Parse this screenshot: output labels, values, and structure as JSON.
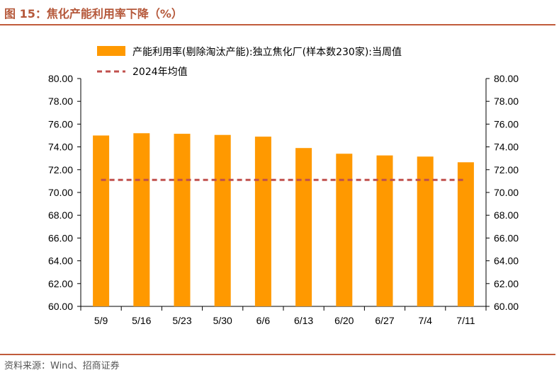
{
  "figure": {
    "title": "图 15：焦化产能利用率下降（%）",
    "source": "资料来源：Wind、招商证券"
  },
  "colors": {
    "bar": "#FF9900",
    "avg_line": "#C0504D",
    "accent": "#C05B3B"
  },
  "chart_data": {
    "type": "bar",
    "categories": [
      "5/9",
      "5/16",
      "5/23",
      "5/30",
      "6/6",
      "6/13",
      "6/20",
      "6/27",
      "7/4",
      "7/11"
    ],
    "series": [
      {
        "name": "产能利用率(剔除淘汰产能):独立焦化厂(样本数230家):当周值",
        "kind": "bar",
        "values": [
          75.0,
          75.2,
          75.15,
          75.05,
          74.9,
          73.9,
          73.4,
          73.25,
          73.15,
          72.65
        ]
      },
      {
        "name": "2024年均值",
        "kind": "line-dashed",
        "values": [
          71.1,
          71.1,
          71.1,
          71.1,
          71.1,
          71.1,
          71.1,
          71.1,
          71.1,
          71.1
        ]
      }
    ],
    "ylim": [
      60,
      80
    ],
    "yticks": [
      "60.00",
      "62.00",
      "64.00",
      "66.00",
      "68.00",
      "70.00",
      "72.00",
      "74.00",
      "76.00",
      "78.00",
      "80.00"
    ],
    "xlabel": "",
    "ylabel": "",
    "grid": false,
    "legend": "top"
  }
}
